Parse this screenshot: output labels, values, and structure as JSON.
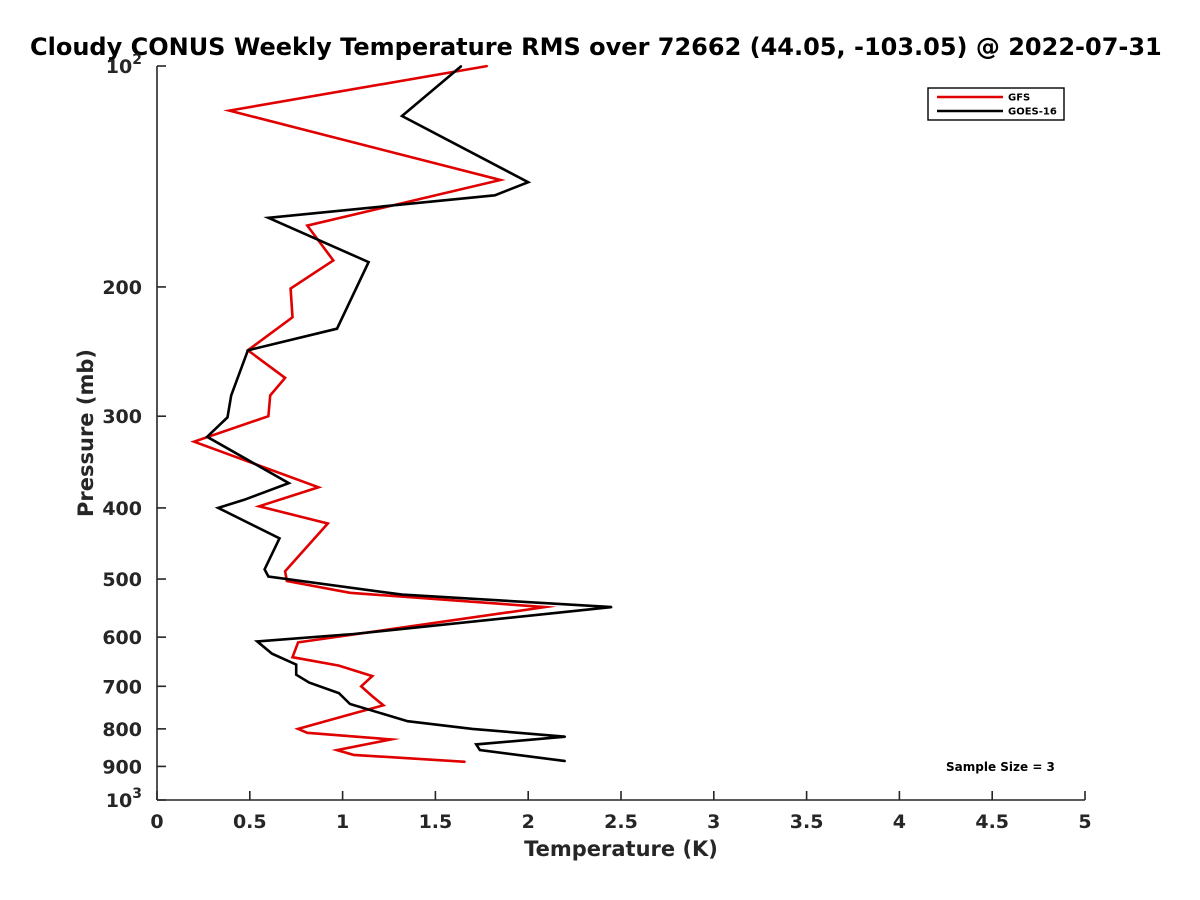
{
  "chart_data": {
    "type": "line",
    "title": "Cloudy CONUS Weekly Temperature RMS over 72662 (44.05, -103.05) @ 2022-07-31",
    "xlabel": "Temperature (K)",
    "ylabel": "Pressure (mb)",
    "xlim": [
      0,
      5
    ],
    "ylim": [
      100,
      1000
    ],
    "yscale": "log",
    "y_reversed": true,
    "xticks": [
      0,
      0.5,
      1,
      1.5,
      2,
      2.5,
      3,
      3.5,
      4,
      4.5,
      5
    ],
    "xtick_labels": [
      "0",
      "0.5",
      "1",
      "1.5",
      "2",
      "2.5",
      "3",
      "3.5",
      "4",
      "4.5",
      "5"
    ],
    "yticks": [
      100,
      200,
      300,
      400,
      500,
      600,
      700,
      800,
      900,
      1000
    ],
    "ytick_labels": [
      {
        "base": "10",
        "exp": "2"
      },
      {
        "base": "200",
        "exp": ""
      },
      {
        "base": "300",
        "exp": ""
      },
      {
        "base": "400",
        "exp": ""
      },
      {
        "base": "500",
        "exp": ""
      },
      {
        "base": "600",
        "exp": ""
      },
      {
        "base": "700",
        "exp": ""
      },
      {
        "base": "800",
        "exp": ""
      },
      {
        "base": "900",
        "exp": ""
      },
      {
        "base": "10",
        "exp": "3"
      }
    ],
    "grid": false,
    "legend_position": "top-right",
    "annotation": "Sample Size = 3",
    "series": [
      {
        "name": "GFS",
        "color": "#e00000",
        "points": [
          [
            1.78,
            100
          ],
          [
            0.39,
            115
          ],
          [
            1.85,
            143
          ],
          [
            0.81,
            165
          ],
          [
            0.95,
            184
          ],
          [
            0.72,
            201
          ],
          [
            0.73,
            220
          ],
          [
            0.49,
            244
          ],
          [
            0.69,
            266
          ],
          [
            0.61,
            281
          ],
          [
            0.6,
            300
          ],
          [
            0.2,
            325
          ],
          [
            0.87,
            375
          ],
          [
            0.55,
            398
          ],
          [
            0.92,
            420
          ],
          [
            0.69,
            488
          ],
          [
            0.7,
            503
          ],
          [
            1.04,
            522
          ],
          [
            2.09,
            546
          ],
          [
            0.76,
            610
          ],
          [
            0.73,
            639
          ],
          [
            0.98,
            656
          ],
          [
            1.16,
            678
          ],
          [
            1.1,
            700
          ],
          [
            1.16,
            722
          ],
          [
            1.22,
            743
          ],
          [
            1.07,
            761
          ],
          [
            0.76,
            800
          ],
          [
            0.81,
            810
          ],
          [
            1.26,
            827
          ],
          [
            0.97,
            855
          ],
          [
            1.06,
            868
          ],
          [
            1.66,
            887
          ]
        ]
      },
      {
        "name": "GOES-16",
        "color": "#000000",
        "points": [
          [
            1.64,
            100
          ],
          [
            1.32,
            117
          ],
          [
            2.0,
            144
          ],
          [
            1.82,
            150
          ],
          [
            0.6,
            161
          ],
          [
            1.14,
            185
          ],
          [
            0.97,
            228
          ],
          [
            0.49,
            244
          ],
          [
            0.4,
            281
          ],
          [
            0.38,
            301
          ],
          [
            0.27,
            320
          ],
          [
            0.71,
            370
          ],
          [
            0.47,
            390
          ],
          [
            0.33,
            400
          ],
          [
            0.66,
            440
          ],
          [
            0.58,
            485
          ],
          [
            0.6,
            496
          ],
          [
            1.32,
            525
          ],
          [
            2.45,
            546
          ],
          [
            1.06,
            594
          ],
          [
            0.54,
            608
          ],
          [
            0.62,
            632
          ],
          [
            0.75,
            654
          ],
          [
            0.75,
            675
          ],
          [
            0.82,
            692
          ],
          [
            0.98,
            715
          ],
          [
            1.04,
            740
          ],
          [
            1.35,
            781
          ],
          [
            1.7,
            800
          ],
          [
            2.2,
            820
          ],
          [
            1.72,
            840
          ],
          [
            1.74,
            855
          ],
          [
            2.2,
            885
          ]
        ]
      }
    ]
  }
}
